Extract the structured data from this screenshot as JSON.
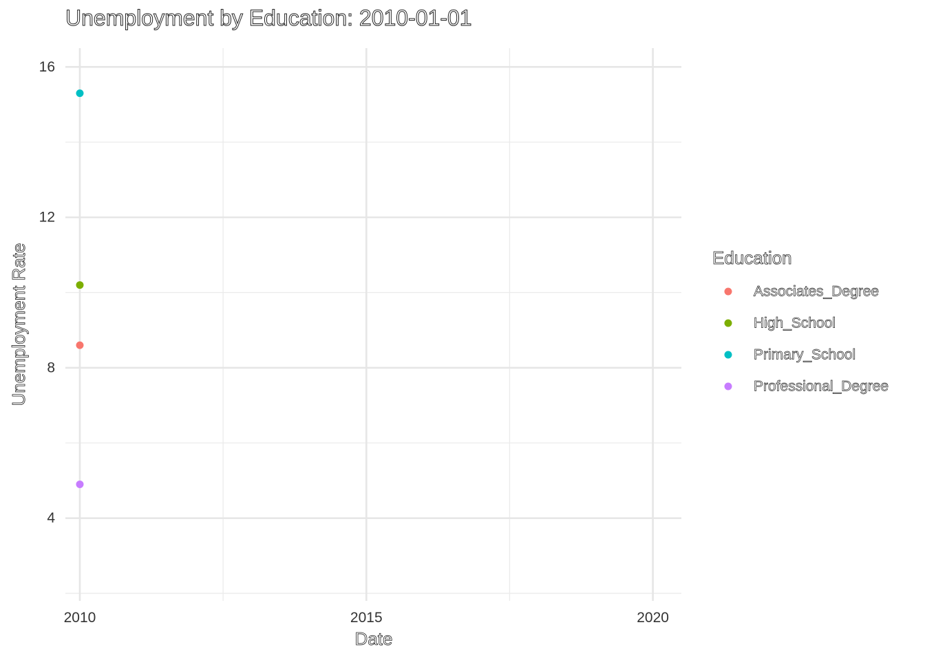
{
  "chart_data": {
    "type": "scatter",
    "title": "Unemployment by Education: 2010-01-01",
    "xlabel": "Date",
    "ylabel": "Unemployment Rate",
    "x_ticks": [
      "2010",
      "2015",
      "2020"
    ],
    "y_ticks": [
      "4",
      "8",
      "12",
      "16"
    ],
    "xlim": [
      "2009-10-01",
      "2020-07-01"
    ],
    "ylim": [
      1.8,
      16.5
    ],
    "grid": true,
    "legend": {
      "title": "Education",
      "placement": "right"
    },
    "series": [
      {
        "name": "Associates_Degree",
        "color": "#F8766D",
        "points": [
          {
            "x": "2010-01-01",
            "y": 8.6
          }
        ]
      },
      {
        "name": "High_School",
        "color": "#7CAE00",
        "points": [
          {
            "x": "2010-01-01",
            "y": 10.2
          }
        ]
      },
      {
        "name": "Primary_School",
        "color": "#00BFC4",
        "points": [
          {
            "x": "2010-01-01",
            "y": 15.3
          }
        ]
      },
      {
        "name": "Professional_Degree",
        "color": "#C77CFF",
        "points": [
          {
            "x": "2010-01-01",
            "y": 4.9
          }
        ]
      }
    ]
  }
}
